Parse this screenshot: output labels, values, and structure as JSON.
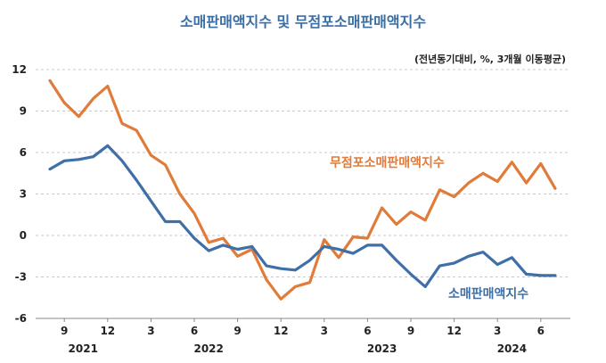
{
  "chart_data": {
    "type": "line",
    "title": "소매판매액지수 및 무점포소매판매액지수",
    "note": "(전년동기대비, %, 3개월 이동평균)",
    "ylim": [
      -6,
      12
    ],
    "yticks": [
      "-6",
      "-3",
      "0",
      "3",
      "6",
      "9",
      "12"
    ],
    "xtick_labels": [
      "9",
      "12",
      "3",
      "6",
      "9",
      "12",
      "3",
      "6",
      "9",
      "12",
      "3",
      "6"
    ],
    "year_labels": [
      "2021",
      "2022",
      "2023",
      "2024"
    ],
    "grid": "horizontal-dashed",
    "series": [
      {
        "name": "무점포소매판매액지수",
        "color": "#e07b39",
        "values": [
          11.2,
          9.6,
          8.6,
          9.9,
          10.8,
          8.1,
          7.6,
          5.8,
          5.1,
          3.0,
          1.6,
          -0.5,
          -0.2,
          -1.5,
          -1.0,
          -3.2,
          -4.6,
          -3.7,
          -3.4,
          -0.3,
          -1.6,
          -0.1,
          -0.2,
          2.0,
          0.8,
          1.7,
          1.1,
          3.3,
          2.8,
          3.8,
          4.5,
          3.9,
          5.3,
          3.8,
          5.2,
          3.4
        ]
      },
      {
        "name": "소매판매액지수",
        "color": "#3f6fa8",
        "values": [
          4.8,
          5.4,
          5.5,
          5.7,
          6.5,
          5.4,
          4.0,
          2.5,
          1.0,
          1.0,
          -0.2,
          -1.1,
          -0.7,
          -1.0,
          -0.8,
          -2.2,
          -2.4,
          -2.5,
          -1.8,
          -0.8,
          -1.0,
          -1.3,
          -0.7,
          -0.7,
          -1.8,
          -2.8,
          -3.7,
          -2.2,
          -2.0,
          -1.5,
          -1.2,
          -2.1,
          -1.6,
          -2.8,
          -2.9,
          -2.9
        ]
      }
    ]
  }
}
